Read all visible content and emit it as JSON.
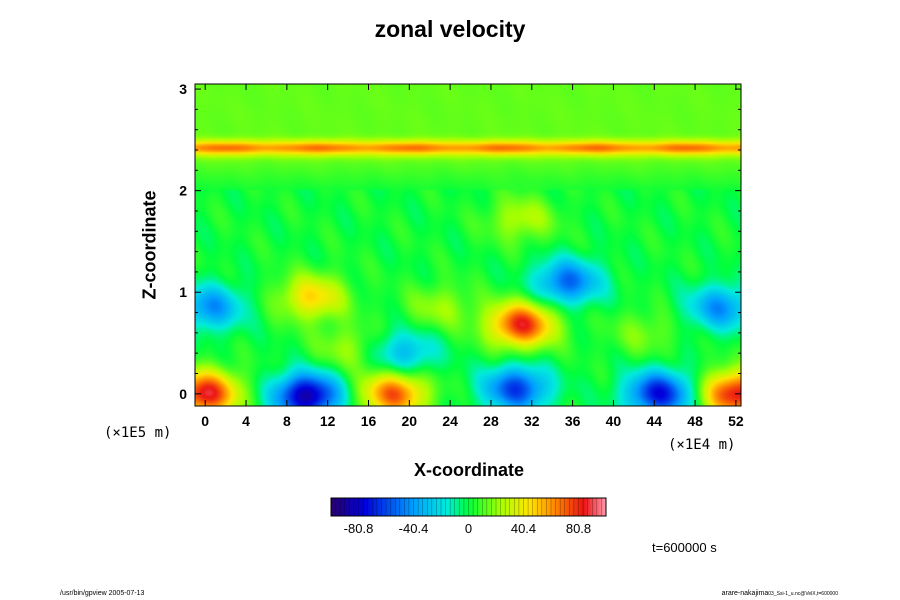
{
  "chart_data": {
    "type": "heatmap",
    "title": "zonal velocity",
    "xlabel": "X-coordinate",
    "ylabel": "Z-coordinate",
    "x_scale_label": "(×1E4 m)",
    "y_scale_label": "(×1E5 m)",
    "xlim": [
      -1,
      52.5
    ],
    "ylim": [
      -0.12,
      3.05
    ],
    "x_ticks": [
      "0",
      "4",
      "8",
      "12",
      "16",
      "20",
      "24",
      "28",
      "32",
      "36",
      "40",
      "44",
      "48",
      "52"
    ],
    "y_ticks": [
      "0",
      "1",
      "2",
      "3"
    ],
    "colorbar": {
      "range": [
        -101,
        101
      ],
      "tick_labels": [
        "-80.8",
        "-40.4",
        "0",
        "40.4",
        "80.8"
      ],
      "tick_values": [
        -80.8,
        -40.4,
        0,
        40.4,
        80.8
      ]
    },
    "time_label": "t=600000 s",
    "features": [
      {
        "x": 0,
        "z": 0.0,
        "value": 85
      },
      {
        "x": 52,
        "z": 0.0,
        "value": 85
      },
      {
        "x": 10,
        "z": -0.02,
        "value": -90
      },
      {
        "x": 18.5,
        "z": 0.0,
        "value": 70
      },
      {
        "x": 30.5,
        "z": 0.05,
        "value": -65
      },
      {
        "x": 44.5,
        "z": 0.0,
        "value": -75
      },
      {
        "x": 0.5,
        "z": 0.85,
        "value": -45
      },
      {
        "x": 50.5,
        "z": 0.85,
        "value": -45
      },
      {
        "x": 10.5,
        "z": 0.95,
        "value": 45
      },
      {
        "x": 31,
        "z": 0.68,
        "value": 80
      },
      {
        "x": 35.5,
        "z": 1.1,
        "value": -55
      },
      {
        "x": 19.5,
        "z": 0.4,
        "value": -35
      },
      {
        "x": 14,
        "z": 0.45,
        "value": 20
      },
      {
        "x": 23,
        "z": 0.85,
        "value": 20
      },
      {
        "x": 43,
        "z": 0.6,
        "value": 15
      },
      {
        "x": 31,
        "z": 1.72,
        "value": 25
      }
    ],
    "jet_band": {
      "z": 2.42,
      "value": 55
    },
    "upper_level_value": 12
  },
  "footer": {
    "left": "/usr/bin/gpview 2005-07-13",
    "right": "arare-nakajima",
    "right_sub": "03_Ssi-1_u.nc@VelX,t=600000"
  }
}
